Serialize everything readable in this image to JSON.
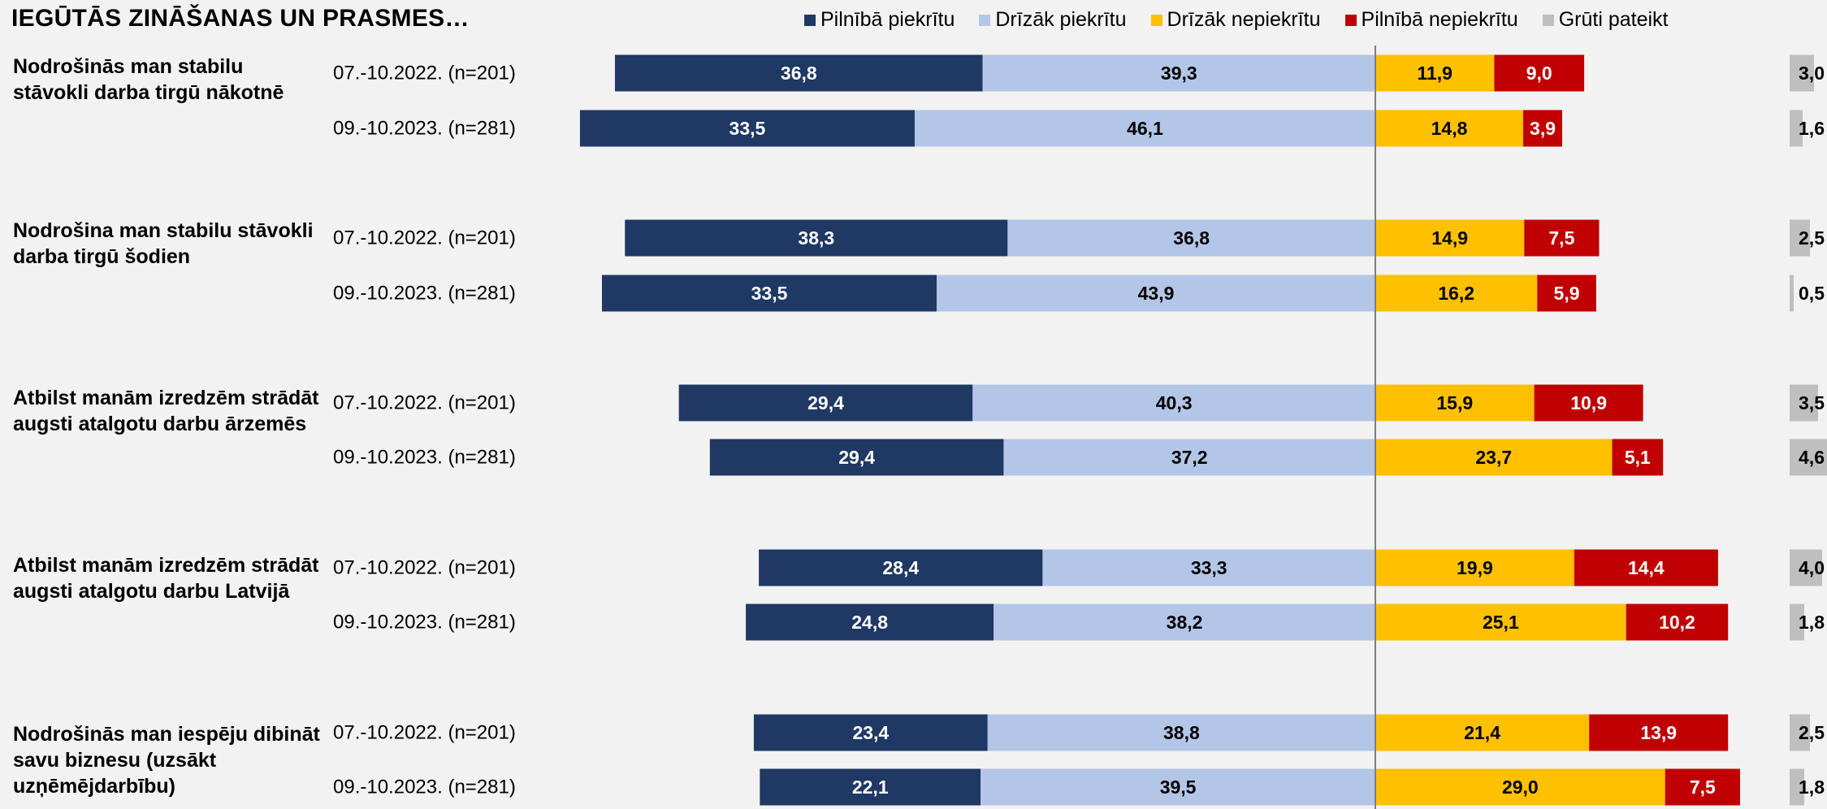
{
  "title": "IEGŪTĀS ZINĀŠANAS UN PRASMES…",
  "legend": [
    {
      "label": "Pilnībā piekrītu",
      "color": "#1f3864"
    },
    {
      "label": "Drīzāk piekrītu",
      "color": "#b4c6e7"
    },
    {
      "label": "Drīzāk nepiekrītu",
      "color": "#ffc000"
    },
    {
      "label": "Pilnībā nepiekrītu",
      "color": "#c00000"
    },
    {
      "label": "Grūti pateikt",
      "color": "#bfbfbf"
    }
  ],
  "chart_data": {
    "type": "bar",
    "orientation": "horizontal",
    "stacking": "diverging",
    "title": "IEGŪTĀS ZINĀŠANAS UN PRASMES…",
    "series_names": [
      "Pilnībā piekrītu",
      "Drīzāk piekrītu",
      "Drīzāk nepiekrītu",
      "Pilnībā nepiekrītu",
      "Grūti pateikt"
    ],
    "colors": [
      "#1f3864",
      "#b4c6e7",
      "#ffc000",
      "#c00000",
      "#bfbfbf"
    ],
    "groups": [
      {
        "question": "Nodrošinās man stabilu stāvokli darba tirgū nākotnē",
        "rows": [
          {
            "label": "07.-10.2022. (n=201)",
            "values": [
              36.8,
              39.3,
              11.9,
              9.0,
              3.0
            ],
            "display": [
              "36,8",
              "39,3",
              "11,9",
              "9,0",
              "3,0"
            ]
          },
          {
            "label": "09.-10.2023. (n=281)",
            "values": [
              33.5,
              46.1,
              14.8,
              3.9,
              1.6
            ],
            "display": [
              "33,5",
              "46,1",
              "14,8",
              "3,9",
              "1,6"
            ]
          }
        ]
      },
      {
        "question": "Nodrošina man stabilu stāvokli darba tirgū šodien",
        "rows": [
          {
            "label": "07.-10.2022. (n=201)",
            "values": [
              38.3,
              36.8,
              14.9,
              7.5,
              2.5
            ],
            "display": [
              "38,3",
              "36,8",
              "14,9",
              "7,5",
              "2,5"
            ]
          },
          {
            "label": "09.-10.2023. (n=281)",
            "values": [
              33.5,
              43.9,
              16.2,
              5.9,
              0.5
            ],
            "display": [
              "33,5",
              "43,9",
              "16,2",
              "5,9",
              "0,5"
            ]
          }
        ]
      },
      {
        "question": "Atbilst manām izredzēm strādāt augsti atalgotu darbu ārzemēs",
        "rows": [
          {
            "label": "07.-10.2022. (n=201)",
            "values": [
              29.4,
              40.3,
              15.9,
              10.9,
              3.5
            ],
            "display": [
              "29,4",
              "40,3",
              "15,9",
              "10,9",
              "3,5"
            ]
          },
          {
            "label": "09.-10.2023. (n=281)",
            "values": [
              29.4,
              37.2,
              23.7,
              5.1,
              4.6
            ],
            "display": [
              "29,4",
              "37,2",
              "23,7",
              "5,1",
              "4,6"
            ]
          }
        ]
      },
      {
        "question": "Atbilst manām izredzēm strādāt augsti atalgotu darbu Latvijā",
        "rows": [
          {
            "label": "07.-10.2022. (n=201)",
            "values": [
              28.4,
              33.3,
              19.9,
              14.4,
              4.0
            ],
            "display": [
              "28,4",
              "33,3",
              "19,9",
              "14,4",
              "4,0"
            ]
          },
          {
            "label": "09.-10.2023. (n=281)",
            "values": [
              24.8,
              38.2,
              25.1,
              10.2,
              1.8
            ],
            "display": [
              "24,8",
              "38,2",
              "25,1",
              "10,2",
              "1,8"
            ]
          }
        ]
      },
      {
        "question": "Nodrošinās man iespēju dibināt savu biznesu (uzsākt uzņēmējdarbību)",
        "rows": [
          {
            "label": "07.-10.2022. (n=201)",
            "values": [
              23.4,
              38.8,
              21.4,
              13.9,
              2.5
            ],
            "display": [
              "23,4",
              "38,8",
              "21,4",
              "13,9",
              "2,5"
            ]
          },
          {
            "label": "09.-10.2023. (n=281)",
            "values": [
              22.1,
              39.5,
              29.0,
              7.5,
              1.8
            ],
            "display": [
              "22,1",
              "39,5",
              "29,0",
              "7,5",
              "1,8"
            ]
          }
        ]
      }
    ]
  }
}
